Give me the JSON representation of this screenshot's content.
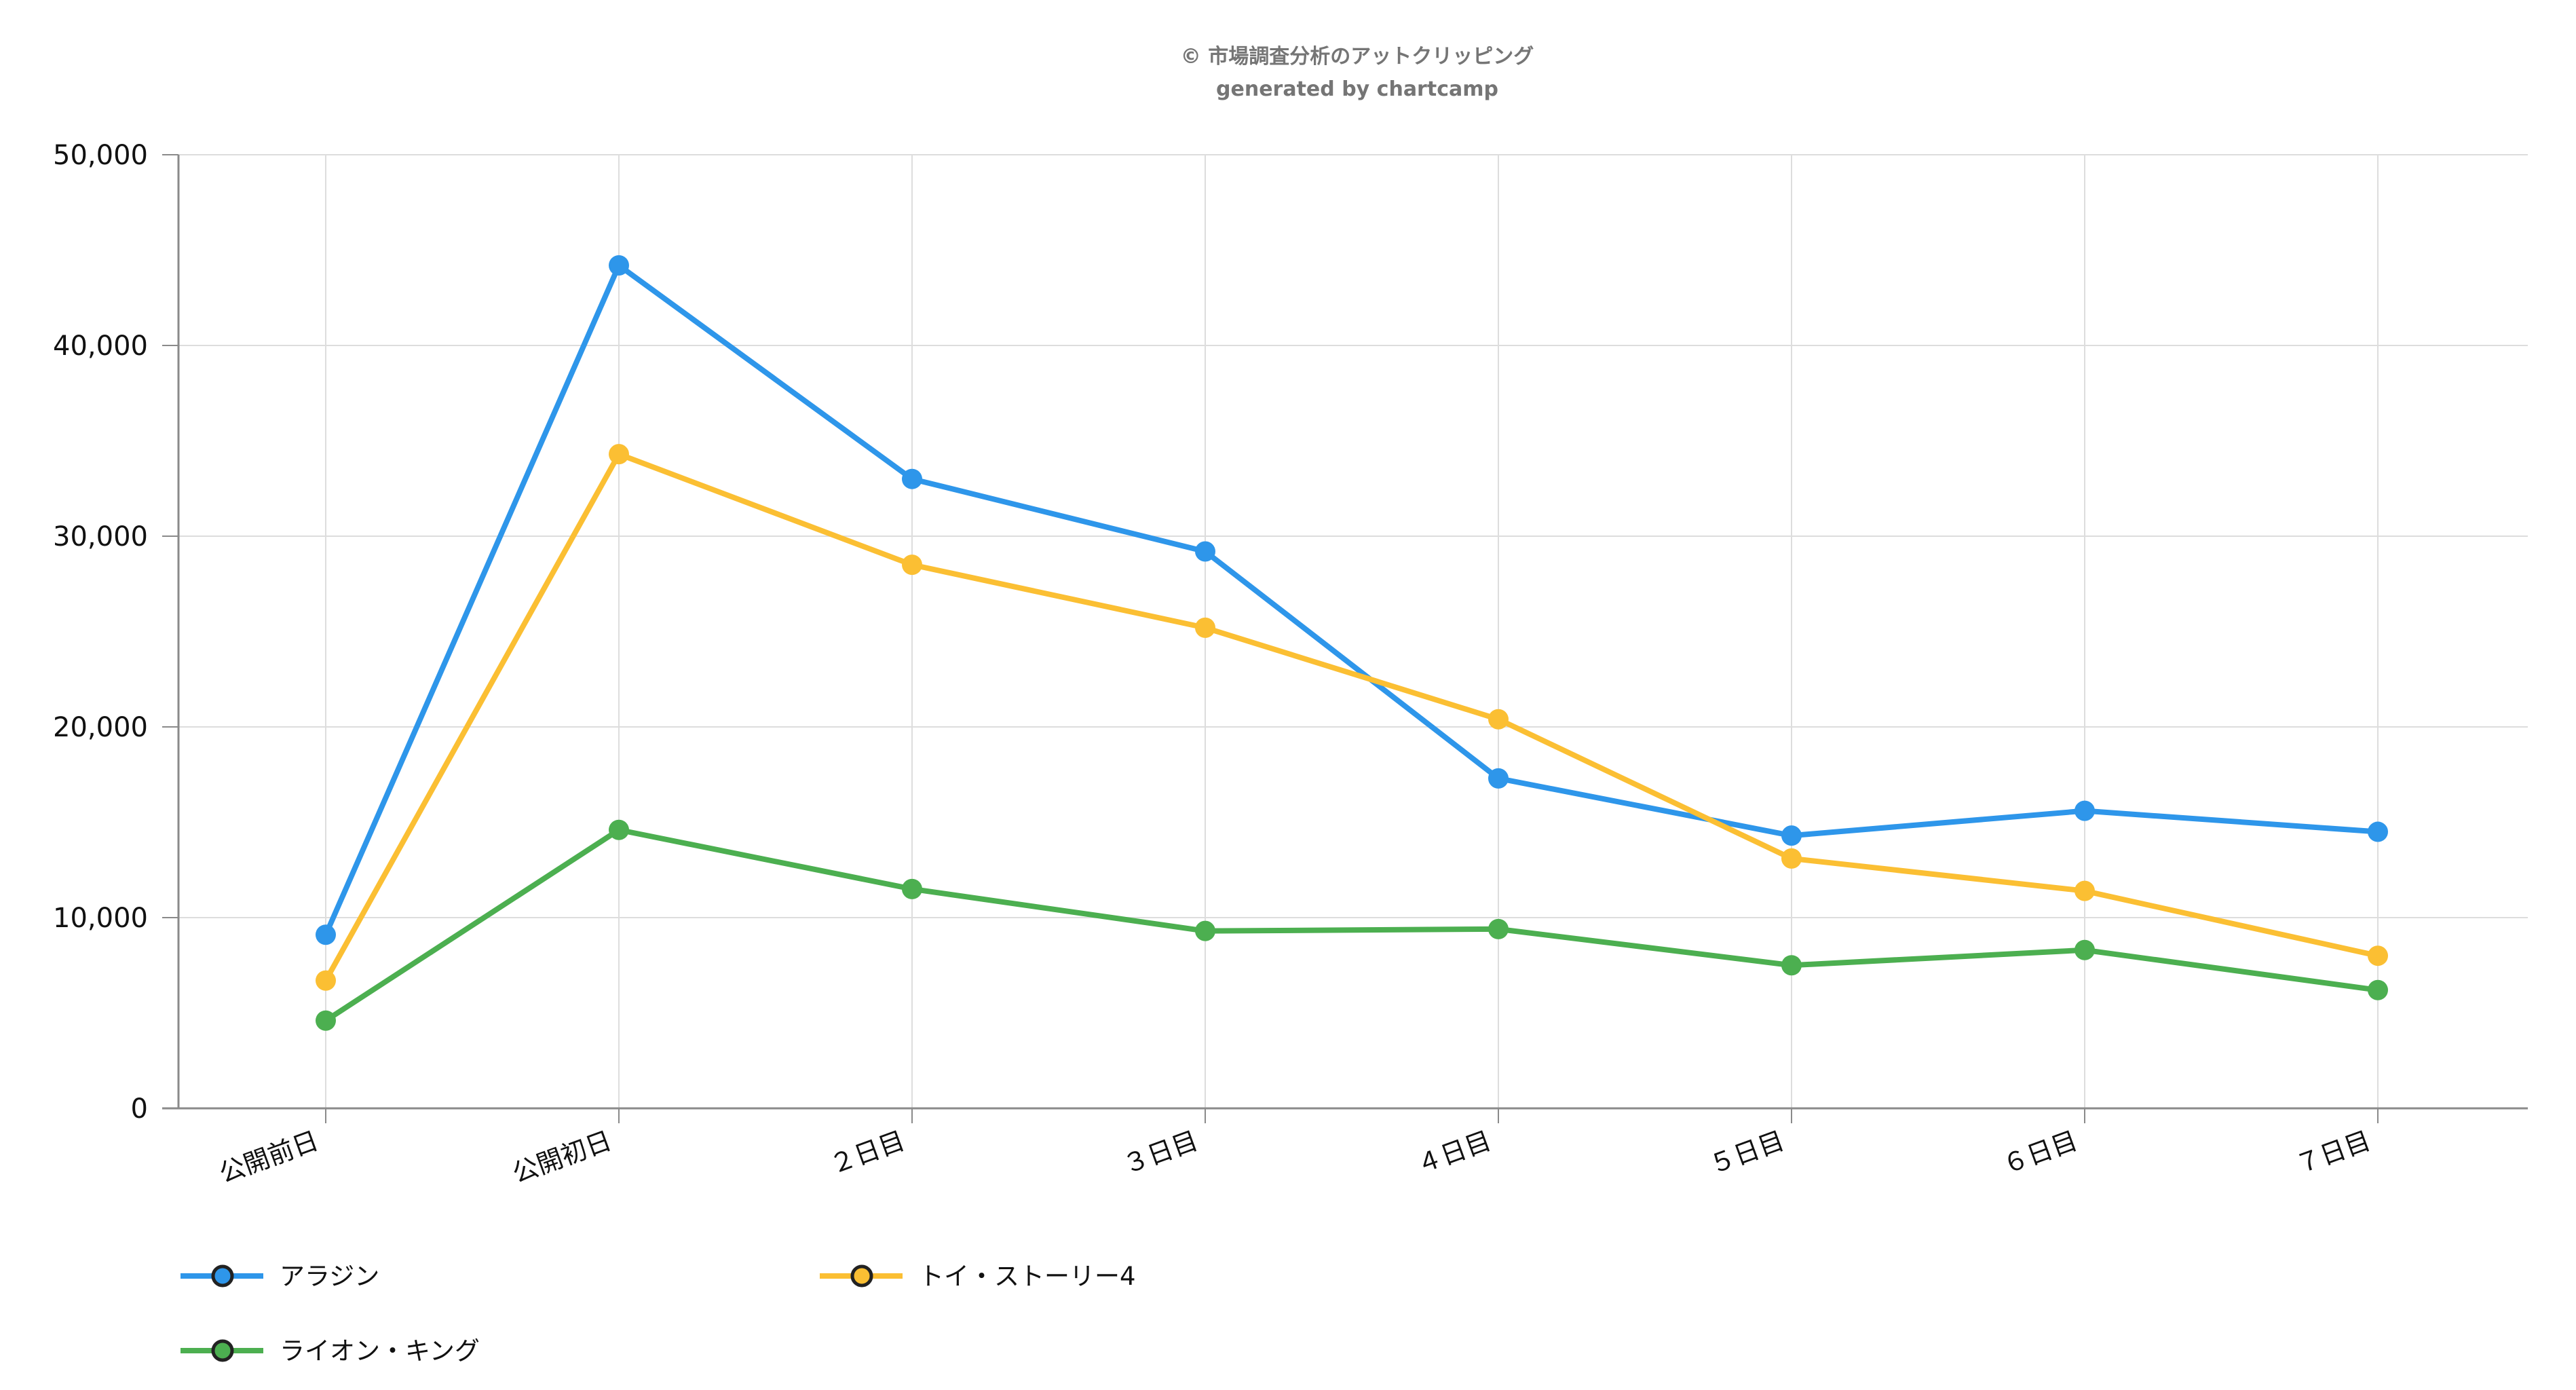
{
  "credit": {
    "line1": "© 市場調査分析のアットクリッピング",
    "line2": "generated by chartcamp"
  },
  "chart_data": {
    "type": "line",
    "categories": [
      "公開前日",
      "公開初日",
      "２日目",
      "３日目",
      "４日目",
      "５日目",
      "６日目",
      "７日目"
    ],
    "series": [
      {
        "name": "アラジン",
        "color": "#2e96ea",
        "values": [
          9100,
          44200,
          33000,
          29200,
          17300,
          14300,
          15600,
          14500
        ]
      },
      {
        "name": "トイ・ストーリー4",
        "color": "#fbbf33",
        "values": [
          6700,
          34300,
          28500,
          25200,
          20400,
          13100,
          11400,
          8000
        ]
      },
      {
        "name": "ライオン・キング",
        "color": "#4caf50",
        "values": [
          4600,
          14600,
          11500,
          9300,
          9400,
          7500,
          8300,
          6200
        ]
      }
    ],
    "ylim": [
      0,
      50000
    ],
    "yticks": [
      "0",
      "10,000",
      "20,000",
      "30,000",
      "40,000",
      "50,000"
    ],
    "ytick_values": [
      0,
      10000,
      20000,
      30000,
      40000,
      50000
    ],
    "grid": true,
    "legend_position": "bottom-left",
    "xlabel": "",
    "ylabel": ""
  }
}
